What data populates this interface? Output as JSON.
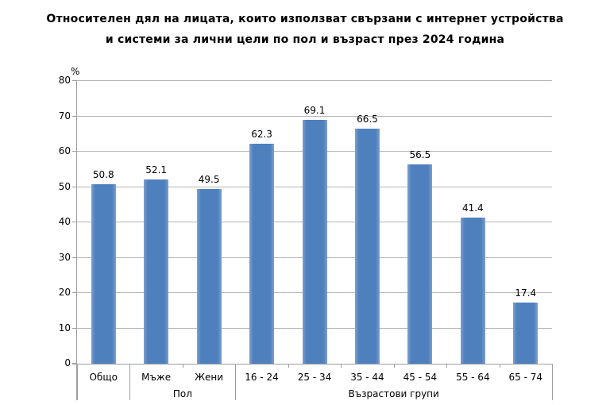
{
  "title": {
    "line1": "Относителен дял на лицата, които използват свързани с интернет устройства",
    "line2": "и системи за лични цели по пол и възраст през 2024 година"
  },
  "chart_data": {
    "type": "bar",
    "title": "Относителен дял на лицата, които използват свързани с интернет устройства и системи за лични цели по пол и възраст през 2024 година",
    "categories": [
      "Общо",
      "Мъже",
      "Жени",
      "16 - 24",
      "25 - 34",
      "35 - 44",
      "45 - 54",
      "55 - 64",
      "65 - 74"
    ],
    "values": [
      50.8,
      52.1,
      49.5,
      62.3,
      69.1,
      66.5,
      56.5,
      41.4,
      17.4
    ],
    "value_labels": [
      "50.8",
      "52.1",
      "49.5",
      "62.3",
      "69.1",
      "66.5",
      "56.5",
      "41.4",
      "17.4"
    ],
    "groups": [
      {
        "label": "",
        "from": 0,
        "to": 0
      },
      {
        "label": "Пол",
        "from": 1,
        "to": 2
      },
      {
        "label": "Възрастови групи",
        "from": 3,
        "to": 8
      }
    ],
    "xlabel": "",
    "ylabel": "%",
    "ylim": [
      0,
      80
    ],
    "yticks": [
      0,
      10,
      20,
      30,
      40,
      50,
      60,
      70,
      80
    ],
    "grid": true,
    "legend": false,
    "colors": {
      "bar": "#4d80bd",
      "bar_edge": "#7e9fce",
      "gridline": "#b6b6b6",
      "axis": "#9e9e9e",
      "text": "#000000"
    }
  }
}
